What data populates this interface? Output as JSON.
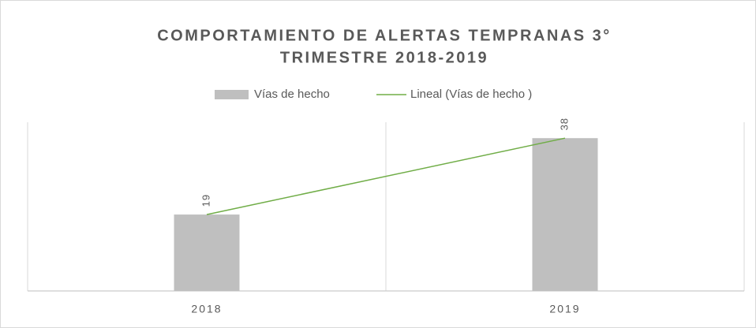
{
  "chart_data": {
    "type": "bar",
    "title": [
      "COMPORTAMIENTO DE ALERTAS TEMPRANAS 3°",
      "TRIMESTRE 2018-2019"
    ],
    "categories": [
      "2018",
      "2019"
    ],
    "series": [
      {
        "name": "Vías de hecho",
        "color": "#bfbfbf",
        "values": [
          19,
          38
        ]
      }
    ],
    "trendline": {
      "name": "Lineal (Vías de hecho )",
      "color": "#70ad47"
    },
    "ylim": [
      0,
      40
    ]
  }
}
